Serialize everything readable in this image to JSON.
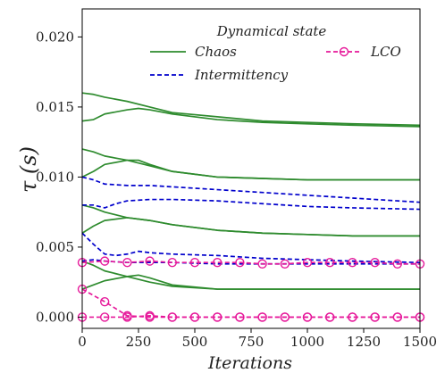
{
  "chart_data": {
    "type": "line",
    "xlabel": "Iterations",
    "ylabel": "τ (s)",
    "xlim": [
      0,
      1500
    ],
    "ylim": [
      -0.0008,
      0.022
    ],
    "xticks": [
      0,
      250,
      500,
      750,
      1000,
      1250,
      1500
    ],
    "xtick_labels": [
      "0",
      "250",
      "500",
      "750",
      "1000",
      "1250",
      "1500"
    ],
    "yticks": [
      0.0,
      0.005,
      0.01,
      0.015,
      0.02
    ],
    "ytick_labels": [
      "0.000",
      "0.005",
      "0.010",
      "0.015",
      "0.020"
    ],
    "grid": false,
    "legend": {
      "title": "Dynamical state",
      "placement": "top-center",
      "entries": [
        {
          "label": "Chaos",
          "style": "solid",
          "color": "#2e8b2e"
        },
        {
          "label": "Intermittency",
          "style": "dashed",
          "color": "#0000cc"
        },
        {
          "label": "LCO",
          "style": "dashed-circle",
          "color": "#e6199a"
        }
      ]
    },
    "series": [
      {
        "state": "Chaos",
        "x": [
          0,
          50,
          100,
          200,
          300,
          400,
          600,
          800,
          1000,
          1200,
          1500
        ],
        "values": [
          0.016,
          0.0159,
          0.0157,
          0.0154,
          0.015,
          0.0146,
          0.0143,
          0.014,
          0.0139,
          0.0138,
          0.0137
        ]
      },
      {
        "state": "Chaos",
        "x": [
          0,
          50,
          100,
          200,
          250,
          300,
          400,
          600,
          800,
          1000,
          1200,
          1500
        ],
        "values": [
          0.014,
          0.0141,
          0.0145,
          0.0148,
          0.0149,
          0.0148,
          0.0145,
          0.0141,
          0.0139,
          0.0138,
          0.0137,
          0.0136
        ]
      },
      {
        "state": "Chaos",
        "x": [
          0,
          50,
          100,
          200,
          300,
          400,
          600,
          800,
          1000,
          1200,
          1500
        ],
        "values": [
          0.012,
          0.0118,
          0.0115,
          0.0112,
          0.0108,
          0.0104,
          0.01,
          0.0099,
          0.0098,
          0.0098,
          0.0098
        ]
      },
      {
        "state": "Chaos",
        "x": [
          0,
          50,
          100,
          200,
          250,
          300,
          400,
          600,
          800,
          1000,
          1200,
          1500
        ],
        "values": [
          0.01,
          0.0104,
          0.0109,
          0.0112,
          0.0112,
          0.0109,
          0.0104,
          0.01,
          0.0099,
          0.0098,
          0.0098,
          0.0098
        ]
      },
      {
        "state": "Chaos",
        "x": [
          0,
          50,
          100,
          200,
          300,
          400,
          600,
          800,
          1000,
          1200,
          1500
        ],
        "values": [
          0.008,
          0.0078,
          0.0075,
          0.0071,
          0.0069,
          0.0066,
          0.0062,
          0.006,
          0.0059,
          0.0058,
          0.0058
        ]
      },
      {
        "state": "Chaos",
        "x": [
          0,
          50,
          100,
          200,
          300,
          400,
          600,
          800,
          1000,
          1200,
          1500
        ],
        "values": [
          0.006,
          0.0065,
          0.0069,
          0.0071,
          0.0069,
          0.0066,
          0.0062,
          0.006,
          0.0059,
          0.0058,
          0.0058
        ]
      },
      {
        "state": "Chaos",
        "x": [
          0,
          50,
          100,
          200,
          300,
          400,
          600,
          800,
          1000,
          1200,
          1500
        ],
        "values": [
          0.004,
          0.0037,
          0.0033,
          0.0029,
          0.0025,
          0.0022,
          0.002,
          0.002,
          0.002,
          0.002,
          0.002
        ]
      },
      {
        "state": "Chaos",
        "x": [
          0,
          50,
          100,
          200,
          250,
          300,
          400,
          600,
          800,
          1000,
          1200,
          1500
        ],
        "values": [
          0.002,
          0.0023,
          0.0026,
          0.0029,
          0.003,
          0.0028,
          0.0023,
          0.002,
          0.002,
          0.002,
          0.002,
          0.002
        ]
      },
      {
        "state": "Intermittency",
        "x": [
          0,
          50,
          100,
          200,
          300,
          400,
          600,
          800,
          1000,
          1200,
          1500
        ],
        "values": [
          0.01,
          0.0098,
          0.0095,
          0.0094,
          0.0094,
          0.0093,
          0.0091,
          0.0089,
          0.0087,
          0.0085,
          0.0082
        ]
      },
      {
        "state": "Intermittency",
        "x": [
          0,
          50,
          100,
          150,
          200,
          300,
          400,
          600,
          800,
          1000,
          1200,
          1500
        ],
        "values": [
          0.008,
          0.008,
          0.0078,
          0.0081,
          0.0083,
          0.0084,
          0.0084,
          0.0083,
          0.0081,
          0.0079,
          0.0078,
          0.0077
        ]
      },
      {
        "state": "Intermittency",
        "x": [
          0,
          50,
          100,
          150,
          200,
          250,
          300,
          400,
          600,
          800,
          1000,
          1200,
          1500
        ],
        "values": [
          0.006,
          0.0052,
          0.0045,
          0.0044,
          0.0045,
          0.0047,
          0.0046,
          0.0045,
          0.0044,
          0.0042,
          0.0041,
          0.004,
          0.0039
        ]
      },
      {
        "state": "Intermittency",
        "x": [
          0,
          50,
          100,
          200,
          300,
          400,
          600,
          800,
          1000,
          1200,
          1500
        ],
        "values": [
          0.004,
          0.0041,
          0.004,
          0.0039,
          0.0039,
          0.0039,
          0.0038,
          0.0038,
          0.0038,
          0.0038,
          0.0038
        ]
      },
      {
        "state": "LCO",
        "x": [
          0,
          100,
          200,
          300,
          400,
          500,
          600,
          700,
          800,
          900,
          1000,
          1100,
          1200,
          1300,
          1400,
          1500
        ],
        "values": [
          0.0039,
          0.004,
          0.0039,
          0.004,
          0.0039,
          0.0039,
          0.0039,
          0.0039,
          0.0038,
          0.0038,
          0.0039,
          0.0039,
          0.0039,
          0.0039,
          0.0038,
          0.0038
        ]
      },
      {
        "state": "LCO",
        "x": [
          0,
          100,
          200,
          300,
          400,
          500,
          600,
          700,
          800,
          900,
          1000,
          1100,
          1200,
          1300,
          1400,
          1500
        ],
        "values": [
          0.002,
          0.0011,
          0.0001,
          0.0,
          0.0,
          0.0,
          0.0,
          0.0,
          0.0,
          0.0,
          0.0,
          0.0,
          0.0,
          0.0,
          0.0,
          0.0
        ]
      },
      {
        "state": "LCO",
        "x": [
          0,
          100,
          200,
          300,
          400,
          500,
          600,
          700,
          800,
          900,
          1000,
          1100,
          1200,
          1300,
          1400,
          1500
        ],
        "values": [
          0.0,
          0.0,
          0.0,
          0.0001,
          0.0,
          0.0,
          0.0,
          0.0,
          0.0,
          0.0,
          0.0,
          0.0,
          0.0,
          0.0,
          0.0,
          0.0
        ]
      }
    ]
  }
}
